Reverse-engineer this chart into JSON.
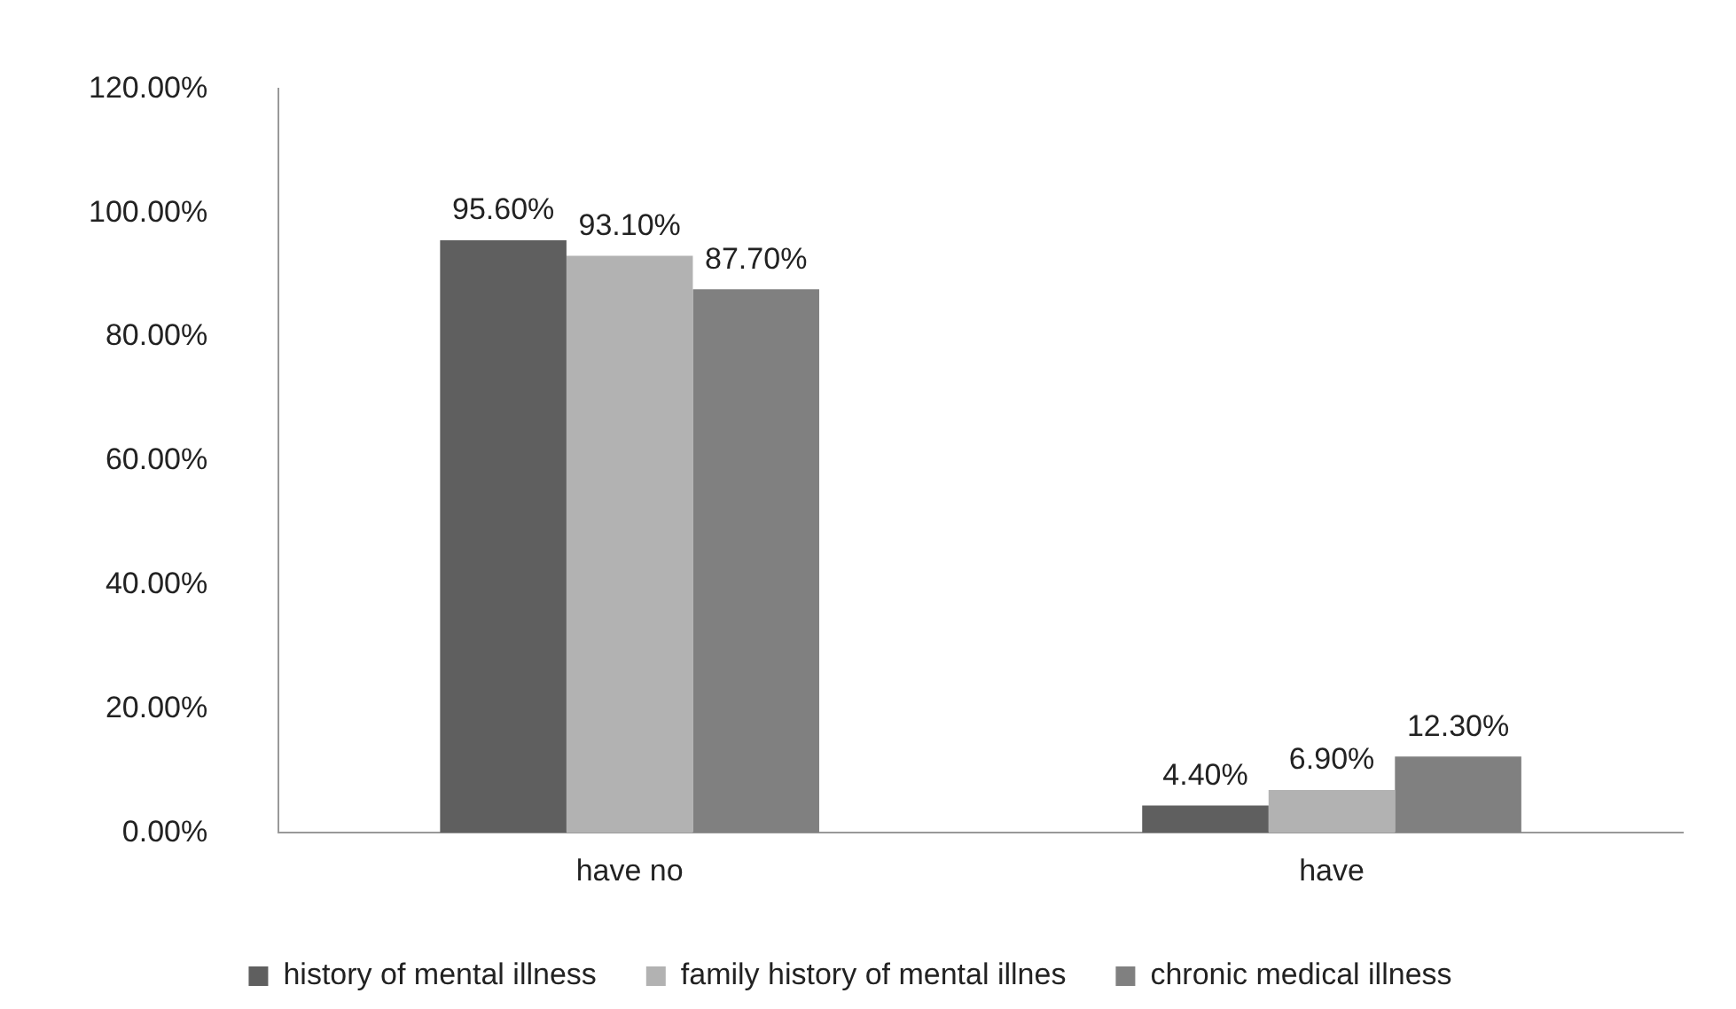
{
  "chart_data": {
    "type": "bar",
    "categories": [
      "have no",
      "have"
    ],
    "series": [
      {
        "name": "history of mental illness",
        "color": "#5f5f5f",
        "values": [
          95.6,
          4.4
        ],
        "value_labels": [
          "95.60%",
          "4.40%"
        ]
      },
      {
        "name": "family history of mental illnes",
        "color": "#b2b2b2",
        "values": [
          93.1,
          6.9
        ],
        "value_labels": [
          "93.10%",
          "6.90%"
        ]
      },
      {
        "name": "chronic medical illness",
        "color": "#808080",
        "values": [
          87.7,
          12.3
        ],
        "value_labels": [
          "87.70%",
          "12.30%"
        ]
      }
    ],
    "ylim": [
      0,
      120
    ],
    "yticks": [
      {
        "value": 0,
        "label": "0.00%"
      },
      {
        "value": 20,
        "label": "20.00%"
      },
      {
        "value": 40,
        "label": "40.00%"
      },
      {
        "value": 60,
        "label": "60.00%"
      },
      {
        "value": 80,
        "label": "80.00%"
      },
      {
        "value": 100,
        "label": "100.00%"
      },
      {
        "value": 120,
        "label": "120.00%"
      }
    ],
    "grid": false,
    "legend": "bottom"
  }
}
